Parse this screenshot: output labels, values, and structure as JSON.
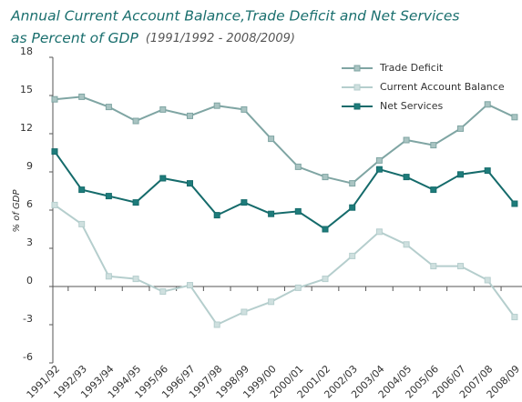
{
  "chart_data": {
    "type": "line",
    "title": [
      "Annual Current Account Balance,Trade Deficit and Net Services",
      "as Percent of GDP"
    ],
    "subtitle": "(1991/1992 - 2008/2009)",
    "y_label": "% of GDP",
    "categories": [
      "1991/92",
      "1992/93",
      "1993/94",
      "1994/95",
      "1995/96",
      "1996/97",
      "1997/98",
      "1998/99",
      "1999/00",
      "2000/01",
      "2001/02",
      "2002/03",
      "2003/04",
      "2004/05",
      "2005/06",
      "2006/07",
      "2007/08",
      "2008/09"
    ],
    "series": [
      {
        "name": "Trade Deficit",
        "color": "#7fa5a3",
        "marker": "#a9c4c2",
        "values": [
          14.7,
          14.9,
          14.1,
          13.0,
          13.9,
          13.4,
          14.2,
          13.9,
          11.6,
          9.4,
          8.6,
          8.1,
          9.9,
          11.5,
          11.1,
          12.4,
          14.3,
          13.3
        ]
      },
      {
        "name": "Current Account Balance",
        "color": "#b5cecd",
        "marker": "#cfe0df",
        "values": [
          6.4,
          4.9,
          0.8,
          0.6,
          -0.4,
          0.1,
          -3.0,
          -2.0,
          -1.2,
          -0.1,
          0.6,
          2.4,
          4.3,
          3.3,
          1.6,
          1.6,
          0.5,
          -2.4
        ]
      },
      {
        "name": "Net Services",
        "color": "#156b6b",
        "marker": "#1e7c7b",
        "values": [
          10.6,
          7.6,
          7.1,
          6.6,
          8.5,
          8.1,
          5.6,
          6.6,
          5.7,
          5.9,
          4.5,
          6.2,
          9.2,
          8.6,
          7.6,
          8.8,
          9.1,
          6.5
        ]
      }
    ],
    "ylim": [
      -6,
      18
    ],
    "yticks": [
      -6,
      -3,
      0,
      3,
      6,
      9,
      12,
      15,
      18
    ],
    "legend": "upper right"
  }
}
